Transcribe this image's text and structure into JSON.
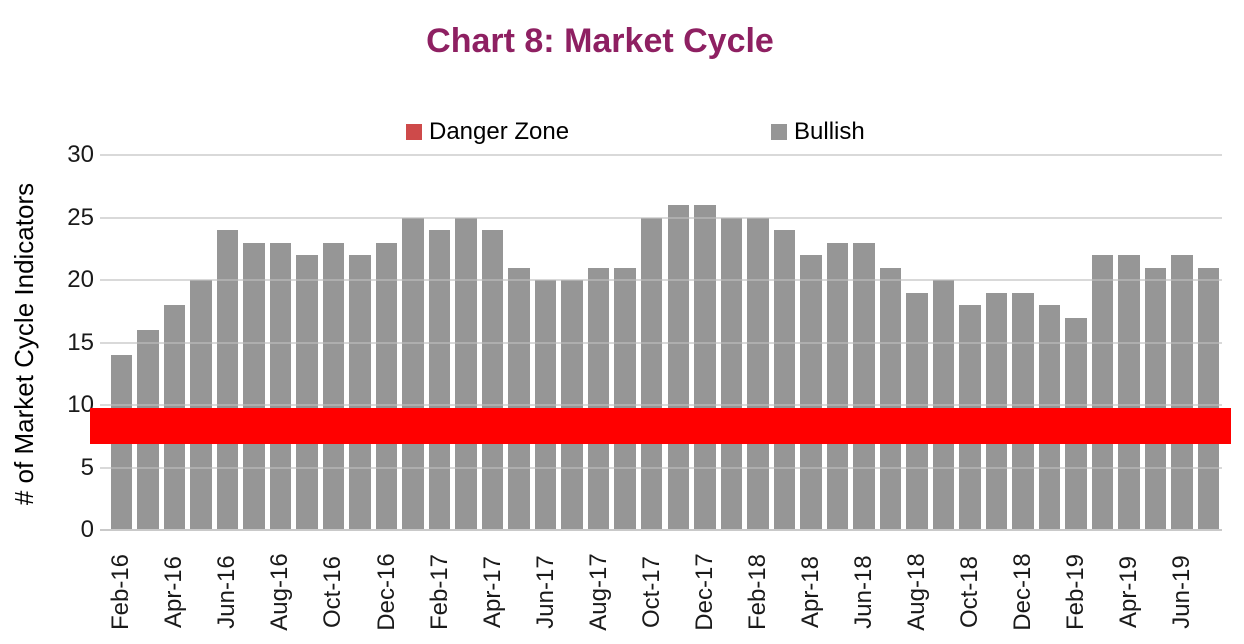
{
  "title": {
    "text": "Chart 8: Market Cycle",
    "color": "#8E2062"
  },
  "legend": {
    "items": [
      {
        "label": "Danger Zone",
        "swatch_color": "#CE4A4A"
      },
      {
        "label": "Bullish",
        "swatch_color": "#969696"
      }
    ]
  },
  "chart_data": {
    "type": "bar",
    "title": "Chart 8: Market Cycle",
    "xlabel": "",
    "ylabel": "# of Market Cycle Indicators",
    "ylim": [
      0,
      30
    ],
    "yticks": [
      0,
      5,
      10,
      15,
      20,
      25,
      30
    ],
    "grid": true,
    "legend_position": "top",
    "x_label_every": 2,
    "categories": [
      "Feb-16",
      "Mar-16",
      "Apr-16",
      "May-16",
      "Jun-16",
      "Jul-16",
      "Aug-16",
      "Sep-16",
      "Oct-16",
      "Nov-16",
      "Dec-16",
      "Jan-17",
      "Feb-17",
      "Mar-17",
      "Apr-17",
      "May-17",
      "Jun-17",
      "Jul-17",
      "Aug-17",
      "Sep-17",
      "Oct-17",
      "Nov-17",
      "Dec-17",
      "Jan-18",
      "Feb-18",
      "Mar-18",
      "Apr-18",
      "May-18",
      "Jun-18",
      "Jul-18",
      "Aug-18",
      "Sep-18",
      "Oct-18",
      "Nov-18",
      "Dec-18",
      "Jan-19",
      "Feb-19",
      "Mar-19",
      "Apr-19",
      "May-19",
      "Jun-19",
      "Jul-19"
    ],
    "series": [
      {
        "name": "Bullish",
        "type": "bar",
        "color": "#969696",
        "values": [
          14,
          16,
          18,
          20,
          24,
          23,
          23,
          22,
          23,
          22,
          23,
          25,
          24,
          25,
          24,
          21,
          20,
          20,
          21,
          21,
          25,
          26,
          26,
          25,
          25,
          24,
          22,
          23,
          23,
          21,
          19,
          20,
          18,
          19,
          19,
          18,
          17,
          22,
          22,
          21,
          22,
          21
        ]
      },
      {
        "name": "Danger Zone",
        "type": "band",
        "color": "#FF0000",
        "y_top": 9.8,
        "y_bottom": 6.85
      }
    ]
  },
  "colors": {
    "gridline": "#D9D9D9",
    "axis_line": "#C9C9C9"
  }
}
